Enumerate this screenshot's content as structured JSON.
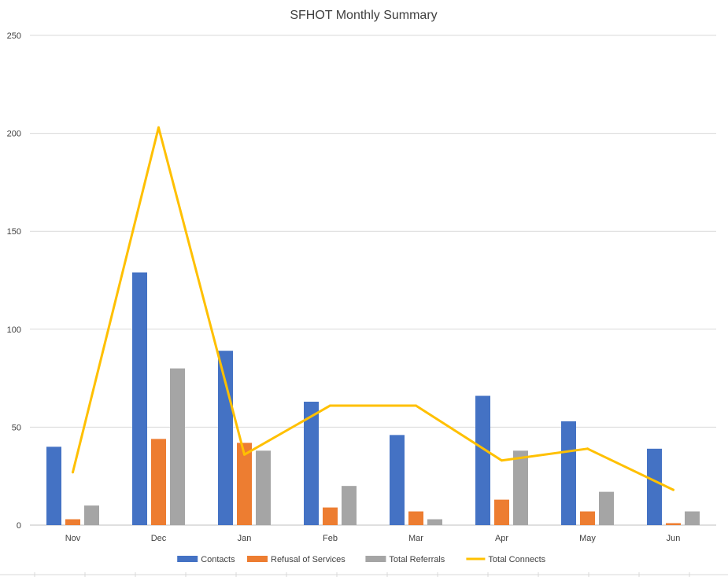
{
  "chart_data": {
    "type": "bar",
    "title": "SFHOT Monthly Summary",
    "categories": [
      "Nov",
      "Dec",
      "Jan",
      "Feb",
      "Mar",
      "Apr",
      "May",
      "Jun"
    ],
    "ylim": [
      0,
      250
    ],
    "yticks": [
      0,
      50,
      100,
      150,
      200,
      250
    ],
    "grid": true,
    "legend_position": "bottom",
    "series": [
      {
        "name": "Contacts",
        "type": "bar",
        "color": "#4472C4",
        "values": [
          40,
          129,
          89,
          63,
          46,
          66,
          53,
          39
        ]
      },
      {
        "name": "Refusal of Services",
        "type": "bar",
        "color": "#ED7D31",
        "values": [
          3,
          44,
          42,
          9,
          7,
          13,
          7,
          1
        ]
      },
      {
        "name": "Total Referrals",
        "type": "bar",
        "color": "#A5A5A5",
        "values": [
          10,
          80,
          38,
          20,
          3,
          38,
          17,
          7
        ]
      },
      {
        "name": "Total Connects",
        "type": "line",
        "color": "#FFC000",
        "values": [
          27,
          203,
          36,
          61,
          61,
          33,
          39,
          18
        ]
      }
    ]
  }
}
